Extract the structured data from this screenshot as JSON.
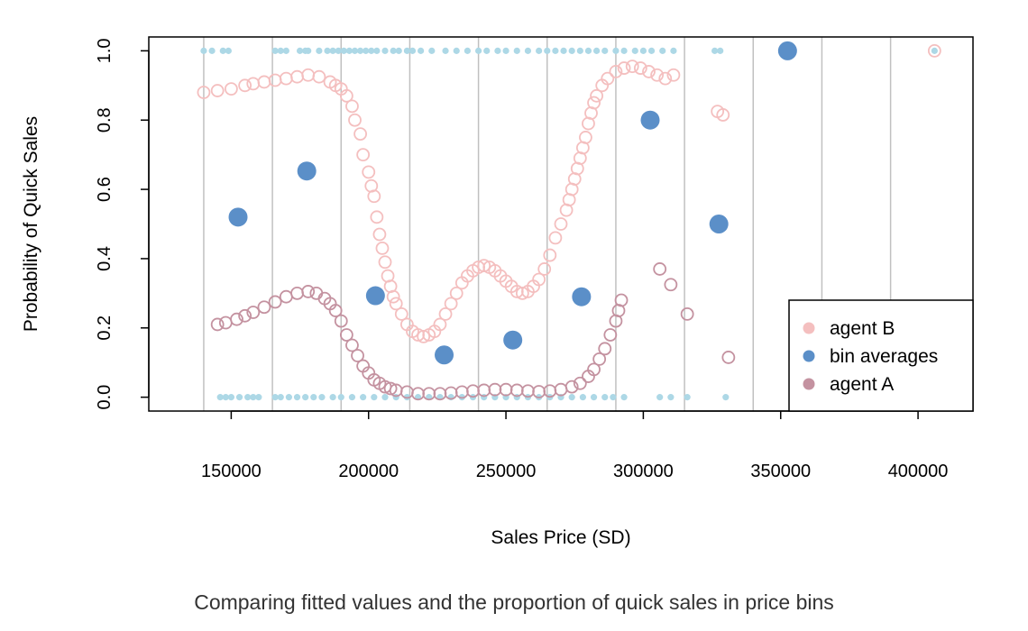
{
  "caption": "Comparing fitted values and the proportion of quick sales in price bins",
  "chart_data": {
    "type": "scatter",
    "title": "",
    "xlabel": "Sales Price (SD)",
    "ylabel": "Probability of Quick Sales",
    "xlim": [
      120000,
      420000
    ],
    "ylim": [
      -0.04,
      1.04
    ],
    "x_ticks": [
      150000,
      200000,
      250000,
      300000,
      350000,
      400000
    ],
    "y_ticks": [
      0.0,
      0.2,
      0.4,
      0.6,
      0.8,
      1.0
    ],
    "y_tick_labels": [
      "0.0",
      "0.2",
      "0.4",
      "0.6",
      "0.8",
      "1.0"
    ],
    "bin_breaks": [
      140000,
      165000,
      190000,
      215000,
      240000,
      265000,
      290000,
      315000,
      340000,
      365000,
      390000
    ],
    "legend": {
      "position": "bottom-right"
    },
    "colors": {
      "agent_b": "#f4bfbf",
      "bin_averages": "#5b8fc8",
      "agent_a": "#c492a0",
      "raw": "#add8e6",
      "grid": "#c0c0c0"
    },
    "series": [
      {
        "name": "agent B",
        "marker": "open-circle",
        "x": [
          140000,
          145000,
          150000,
          155000,
          158000,
          162000,
          166000,
          170000,
          174000,
          178000,
          182000,
          186000,
          188000,
          190000,
          192000,
          194000,
          195000,
          197000,
          198000,
          200000,
          201000,
          202000,
          203000,
          204000,
          205000,
          206000,
          207000,
          208000,
          209000,
          210000,
          212000,
          214000,
          216000,
          218000,
          220000,
          222000,
          224000,
          226000,
          228000,
          230000,
          232000,
          234000,
          236000,
          238000,
          240000,
          242000,
          244000,
          246000,
          248000,
          250000,
          252000,
          254000,
          256000,
          258000,
          260000,
          262000,
          264000,
          266000,
          268000,
          270000,
          272000,
          273000,
          274000,
          275000,
          276000,
          277000,
          278000,
          279000,
          280000,
          281000,
          282000,
          283000,
          285000,
          287000,
          290000,
          293000,
          296000,
          299000,
          302000,
          305000,
          308000,
          311000,
          327000,
          329000,
          406000
        ],
        "y": [
          0.88,
          0.885,
          0.89,
          0.9,
          0.905,
          0.91,
          0.915,
          0.92,
          0.925,
          0.93,
          0.925,
          0.91,
          0.9,
          0.89,
          0.87,
          0.84,
          0.8,
          0.76,
          0.7,
          0.65,
          0.61,
          0.58,
          0.52,
          0.47,
          0.43,
          0.39,
          0.35,
          0.32,
          0.29,
          0.27,
          0.24,
          0.21,
          0.19,
          0.18,
          0.175,
          0.18,
          0.19,
          0.21,
          0.24,
          0.27,
          0.3,
          0.33,
          0.35,
          0.365,
          0.375,
          0.38,
          0.375,
          0.365,
          0.35,
          0.335,
          0.32,
          0.305,
          0.3,
          0.305,
          0.32,
          0.34,
          0.37,
          0.41,
          0.46,
          0.5,
          0.54,
          0.57,
          0.6,
          0.63,
          0.66,
          0.69,
          0.72,
          0.75,
          0.79,
          0.82,
          0.85,
          0.87,
          0.9,
          0.92,
          0.94,
          0.95,
          0.955,
          0.95,
          0.94,
          0.93,
          0.92,
          0.93,
          0.825,
          0.815,
          1.0
        ]
      },
      {
        "name": "bin averages",
        "marker": "filled-circle",
        "x": [
          152500,
          177500,
          202500,
          227500,
          252500,
          277500,
          302500,
          327500,
          352500
        ],
        "y": [
          0.52,
          0.653,
          0.293,
          0.122,
          0.165,
          0.29,
          0.8,
          0.5,
          1.0
        ]
      },
      {
        "name": "agent A",
        "marker": "open-circle",
        "x": [
          145000,
          148000,
          152000,
          155000,
          158000,
          162000,
          166000,
          170000,
          174000,
          178000,
          181000,
          184000,
          186000,
          188000,
          190000,
          192000,
          194000,
          196000,
          198000,
          200000,
          202000,
          204000,
          206000,
          208000,
          210000,
          214000,
          218000,
          222000,
          226000,
          230000,
          234000,
          238000,
          242000,
          246000,
          250000,
          254000,
          258000,
          262000,
          266000,
          270000,
          274000,
          277000,
          280000,
          282000,
          284000,
          286000,
          288000,
          290000,
          291000,
          292000,
          306000,
          310000,
          316000,
          331000
        ],
        "y": [
          0.21,
          0.215,
          0.225,
          0.235,
          0.245,
          0.26,
          0.275,
          0.29,
          0.3,
          0.305,
          0.3,
          0.285,
          0.27,
          0.25,
          0.22,
          0.18,
          0.15,
          0.12,
          0.09,
          0.07,
          0.05,
          0.04,
          0.03,
          0.025,
          0.02,
          0.015,
          0.01,
          0.01,
          0.01,
          0.012,
          0.015,
          0.018,
          0.02,
          0.022,
          0.022,
          0.02,
          0.018,
          0.016,
          0.018,
          0.022,
          0.03,
          0.04,
          0.06,
          0.08,
          0.11,
          0.14,
          0.18,
          0.22,
          0.25,
          0.28,
          0.37,
          0.325,
          0.24,
          0.115
        ]
      },
      {
        "name": "",
        "marker": "small-dot",
        "x": [
          140000,
          143000,
          147000,
          149000,
          166000,
          168000,
          170000,
          175000,
          177000,
          178000,
          182000,
          185000,
          187000,
          189000,
          191000,
          193000,
          195000,
          197000,
          199000,
          201000,
          203000,
          206000,
          209000,
          211000,
          214000,
          216000,
          219000,
          223000,
          228000,
          232000,
          236000,
          240000,
          243000,
          247000,
          250000,
          254000,
          258000,
          262000,
          265000,
          268000,
          271000,
          274000,
          277000,
          280000,
          283000,
          286000,
          290000,
          293000,
          297000,
          300000,
          303000,
          307000,
          311000,
          326000,
          328000,
          406000,
          146000,
          148000,
          150000,
          153000,
          156000,
          158000,
          160000,
          166000,
          168000,
          171000,
          174000,
          177000,
          180000,
          183000,
          187000,
          190000,
          194000,
          198000,
          202000,
          206000,
          210000,
          214000,
          218000,
          222000,
          226000,
          230000,
          234000,
          238000,
          242000,
          246000,
          250000,
          254000,
          258000,
          262000,
          266000,
          270000,
          274000,
          278000,
          282000,
          286000,
          289000,
          293000,
          306000,
          310000,
          316000,
          330000
        ],
        "y": [
          1,
          1,
          1,
          1,
          1,
          1,
          1,
          1,
          1,
          1,
          1,
          1,
          1,
          1,
          1,
          1,
          1,
          1,
          1,
          1,
          1,
          1,
          1,
          1,
          1,
          1,
          1,
          1,
          1,
          1,
          1,
          1,
          1,
          1,
          1,
          1,
          1,
          1,
          1,
          1,
          1,
          1,
          1,
          1,
          1,
          1,
          1,
          1,
          1,
          1,
          1,
          1,
          1,
          1,
          1,
          1,
          0,
          0,
          0,
          0,
          0,
          0,
          0,
          0,
          0,
          0,
          0,
          0,
          0,
          0,
          0,
          0,
          0,
          0,
          0,
          0,
          0,
          0,
          0,
          0,
          0,
          0,
          0,
          0,
          0,
          0,
          0,
          0,
          0,
          0,
          0,
          0,
          0,
          0,
          0,
          0,
          0,
          0,
          0,
          0,
          0,
          0
        ]
      }
    ]
  }
}
